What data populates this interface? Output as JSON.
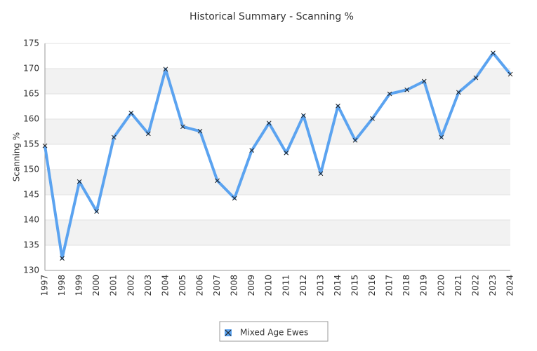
{
  "chart_data": {
    "type": "line",
    "title": "Historical Summary - Scanning %",
    "y_label": "Scanning %",
    "x": [
      "1997",
      "1998",
      "1999",
      "2000",
      "2001",
      "2002",
      "2003",
      "2004",
      "2005",
      "2006",
      "2007",
      "2008",
      "2009",
      "2010",
      "2011",
      "2012",
      "2013",
      "2014",
      "2015",
      "2016",
      "2017",
      "2018",
      "2019",
      "2020",
      "2021",
      "2022",
      "2023",
      "2024"
    ],
    "series": [
      {
        "name": "Mixed Age Ewes",
        "color": "#5ba3f0",
        "values": [
          154.7,
          132.4,
          147.6,
          141.7,
          156.4,
          161.2,
          157.1,
          169.9,
          158.5,
          157.6,
          147.8,
          144.3,
          153.8,
          159.2,
          153.3,
          160.7,
          149.2,
          162.6,
          155.8,
          160.1,
          165.0,
          165.8,
          167.5,
          156.4,
          165.3,
          168.2,
          173.1,
          168.9
        ]
      }
    ],
    "ylim": [
      130,
      175
    ],
    "yticks": [
      130,
      135,
      140,
      145,
      150,
      155,
      160,
      165,
      170,
      175
    ],
    "grid": true,
    "legend": "bottom"
  }
}
